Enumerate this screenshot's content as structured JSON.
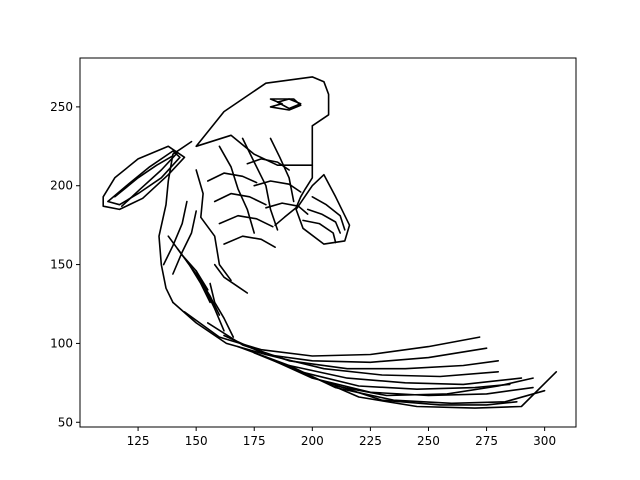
{
  "chart_data": {
    "type": "line",
    "title": "",
    "xlabel": "",
    "ylabel": "",
    "xlim": [
      100,
      313.5
    ],
    "ylim": [
      47,
      281
    ],
    "x_ticks": [
      125,
      150,
      175,
      200,
      225,
      250,
      275,
      300
    ],
    "y_ticks": [
      50,
      100,
      150,
      200,
      250
    ],
    "x_tick_labels": [
      "125",
      "150",
      "175",
      "200",
      "225",
      "250",
      "275",
      "300"
    ],
    "y_tick_labels": [
      "50",
      "100",
      "150",
      "200",
      "250"
    ],
    "grid": false,
    "legend": "none",
    "line_color": "#000000",
    "series": [
      {
        "points": [
          [
            150,
            225
          ],
          [
            162,
            247
          ],
          [
            180,
            265
          ],
          [
            200,
            269
          ],
          [
            205,
            266
          ],
          [
            207,
            258
          ],
          [
            207,
            245
          ],
          [
            200,
            238
          ],
          [
            200,
            227
          ],
          [
            200,
            213
          ],
          [
            185,
            213
          ],
          [
            175,
            220
          ],
          [
            165,
            232
          ],
          [
            150,
            225
          ]
        ]
      },
      {
        "points": [
          [
            187,
            252
          ],
          [
            182,
            255
          ],
          [
            192,
            255
          ],
          [
            195,
            251
          ],
          [
            190,
            248
          ],
          [
            182,
            250
          ],
          [
            187,
            252
          ]
        ]
      },
      {
        "points": [
          [
            185,
            253
          ],
          [
            190,
            255
          ],
          [
            195,
            252
          ],
          [
            190,
            249
          ],
          [
            185,
            253
          ]
        ]
      },
      {
        "points": [
          [
            148,
            228
          ],
          [
            140,
            220
          ],
          [
            138,
            203
          ],
          [
            137,
            188
          ],
          [
            134,
            168
          ],
          [
            135,
            150
          ],
          [
            137,
            135
          ],
          [
            140,
            126
          ]
        ]
      },
      {
        "points": [
          [
            200,
            213
          ],
          [
            200,
            205
          ],
          [
            197,
            198
          ],
          [
            195,
            193
          ],
          [
            193,
            186
          ],
          [
            188,
            180
          ],
          [
            184,
            175
          ]
        ]
      },
      {
        "points": [
          [
            138,
            225
          ],
          [
            125,
            217
          ],
          [
            115,
            205
          ],
          [
            110,
            193
          ],
          [
            110,
            187
          ],
          [
            117,
            185
          ],
          [
            127,
            192
          ],
          [
            138,
            207
          ],
          [
            145,
            218
          ],
          [
            138,
            225
          ]
        ]
      },
      {
        "points": [
          [
            112,
            190
          ],
          [
            120,
            200
          ],
          [
            130,
            212
          ],
          [
            140,
            222
          ],
          [
            143,
            218
          ],
          [
            135,
            205
          ],
          [
            125,
            195
          ],
          [
            117,
            188
          ],
          [
            112,
            190
          ]
        ]
      },
      {
        "points": [
          [
            115,
            193
          ],
          [
            125,
            205
          ],
          [
            133,
            213
          ],
          [
            140,
            219
          ]
        ]
      },
      {
        "points": [
          [
            118,
            187
          ],
          [
            126,
            198
          ],
          [
            135,
            210
          ],
          [
            142,
            221
          ]
        ]
      },
      {
        "points": [
          [
            205,
            207
          ],
          [
            210,
            193
          ],
          [
            216,
            175
          ],
          [
            214,
            165
          ],
          [
            205,
            163
          ],
          [
            196,
            173
          ],
          [
            193,
            185
          ],
          [
            200,
            200
          ],
          [
            205,
            207
          ]
        ]
      },
      {
        "points": [
          [
            198,
            185
          ],
          [
            204,
            182
          ],
          [
            210,
            177
          ],
          [
            212,
            170
          ]
        ]
      },
      {
        "points": [
          [
            200,
            193
          ],
          [
            206,
            188
          ],
          [
            212,
            181
          ],
          [
            214,
            172
          ]
        ]
      },
      {
        "points": [
          [
            196,
            178
          ],
          [
            203,
            176
          ],
          [
            209,
            170
          ],
          [
            210,
            164
          ]
        ]
      },
      {
        "points": [
          [
            140,
            126
          ],
          [
            150,
            113
          ],
          [
            163,
            100
          ],
          [
            180,
            93
          ],
          [
            200,
            89
          ],
          [
            225,
            88
          ],
          [
            250,
            91
          ],
          [
            275,
            97
          ]
        ]
      },
      {
        "points": [
          [
            145,
            120
          ],
          [
            160,
            104
          ],
          [
            178,
            96
          ],
          [
            200,
            92
          ],
          [
            225,
            93
          ],
          [
            250,
            98
          ],
          [
            272,
            104
          ]
        ]
      },
      {
        "points": [
          [
            155,
            113
          ],
          [
            170,
            99
          ],
          [
            190,
            89
          ],
          [
            215,
            84
          ],
          [
            240,
            84
          ],
          [
            265,
            86
          ],
          [
            280,
            89
          ]
        ]
      },
      {
        "points": [
          [
            162,
            105
          ],
          [
            180,
            93
          ],
          [
            205,
            84
          ],
          [
            230,
            80
          ],
          [
            255,
            79
          ],
          [
            280,
            82
          ]
        ]
      },
      {
        "points": [
          [
            168,
            98
          ],
          [
            190,
            86
          ],
          [
            215,
            78
          ],
          [
            240,
            75
          ],
          [
            265,
            74
          ],
          [
            290,
            78
          ]
        ]
      },
      {
        "points": [
          [
            175,
            94
          ],
          [
            195,
            82
          ],
          [
            220,
            73
          ],
          [
            245,
            71
          ],
          [
            270,
            72
          ],
          [
            285,
            74
          ]
        ]
      },
      {
        "points": [
          [
            182,
            90
          ],
          [
            200,
            78
          ],
          [
            225,
            69
          ],
          [
            250,
            67
          ],
          [
            275,
            68
          ],
          [
            295,
            72
          ]
        ]
      },
      {
        "points": [
          [
            190,
            86
          ],
          [
            210,
            72
          ],
          [
            235,
            64
          ],
          [
            260,
            62
          ],
          [
            283,
            63
          ],
          [
            300,
            70
          ]
        ]
      },
      {
        "points": [
          [
            195,
            82
          ],
          [
            220,
            66
          ],
          [
            245,
            60
          ],
          [
            270,
            59
          ],
          [
            290,
            60
          ],
          [
            305,
            82
          ]
        ]
      },
      {
        "points": [
          [
            205,
            76
          ],
          [
            230,
            64
          ],
          [
            255,
            61
          ],
          [
            275,
            61
          ],
          [
            288,
            63
          ]
        ]
      },
      {
        "points": [
          [
            210,
            73
          ],
          [
            232,
            67
          ],
          [
            258,
            68
          ],
          [
            280,
            73
          ],
          [
            295,
            78
          ]
        ]
      },
      {
        "points": [
          [
            150,
            210
          ],
          [
            153,
            195
          ],
          [
            152,
            180
          ],
          [
            158,
            168
          ],
          [
            160,
            150
          ],
          [
            165,
            140
          ]
        ]
      },
      {
        "points": [
          [
            160,
            225
          ],
          [
            165,
            212
          ],
          [
            168,
            198
          ],
          [
            172,
            185
          ],
          [
            175,
            170
          ]
        ]
      },
      {
        "points": [
          [
            170,
            230
          ],
          [
            175,
            215
          ],
          [
            180,
            200
          ],
          [
            182,
            185
          ],
          [
            185,
            172
          ]
        ]
      },
      {
        "points": [
          [
            182,
            230
          ],
          [
            186,
            218
          ],
          [
            190,
            205
          ],
          [
            192,
            190
          ]
        ]
      },
      {
        "points": [
          [
            155,
            203
          ],
          [
            162,
            208
          ],
          [
            170,
            206
          ],
          [
            176,
            202
          ]
        ]
      },
      {
        "points": [
          [
            158,
            190
          ],
          [
            165,
            195
          ],
          [
            173,
            193
          ],
          [
            180,
            188
          ]
        ]
      },
      {
        "points": [
          [
            160,
            176
          ],
          [
            168,
            181
          ],
          [
            176,
            179
          ],
          [
            183,
            174
          ]
        ]
      },
      {
        "points": [
          [
            162,
            163
          ],
          [
            170,
            168
          ],
          [
            178,
            166
          ],
          [
            184,
            161
          ]
        ]
      },
      {
        "points": [
          [
            172,
            214
          ],
          [
            178,
            217
          ],
          [
            185,
            215
          ],
          [
            190,
            210
          ]
        ]
      },
      {
        "points": [
          [
            175,
            200
          ],
          [
            182,
            203
          ],
          [
            190,
            201
          ],
          [
            195,
            196
          ]
        ]
      },
      {
        "points": [
          [
            180,
            186
          ],
          [
            187,
            189
          ],
          [
            194,
            187
          ],
          [
            198,
            182
          ]
        ]
      },
      {
        "points": [
          [
            138,
            168
          ],
          [
            144,
            156
          ],
          [
            150,
            146
          ],
          [
            155,
            134
          ]
        ]
      },
      {
        "points": [
          [
            142,
            160
          ],
          [
            147,
            150
          ],
          [
            152,
            138
          ],
          [
            156,
            126
          ]
        ]
      },
      {
        "points": [
          [
            146,
            152
          ],
          [
            151,
            142
          ],
          [
            156,
            130
          ],
          [
            160,
            118
          ]
        ]
      },
      {
        "points": [
          [
            150,
            146
          ],
          [
            154,
            134
          ],
          [
            158,
            122
          ],
          [
            162,
            108
          ]
        ]
      },
      {
        "points": [
          [
            156,
            138
          ],
          [
            158,
            126
          ],
          [
            162,
            116
          ],
          [
            166,
            104
          ]
        ]
      },
      {
        "points": [
          [
            136,
            150
          ],
          [
            140,
            162
          ],
          [
            144,
            176
          ],
          [
            146,
            190
          ]
        ]
      },
      {
        "points": [
          [
            140,
            144
          ],
          [
            144,
            158
          ],
          [
            148,
            170
          ],
          [
            150,
            184
          ]
        ]
      },
      {
        "points": [
          [
            158,
            150
          ],
          [
            162,
            142
          ],
          [
            168,
            136
          ],
          [
            172,
            132
          ]
        ]
      }
    ]
  }
}
